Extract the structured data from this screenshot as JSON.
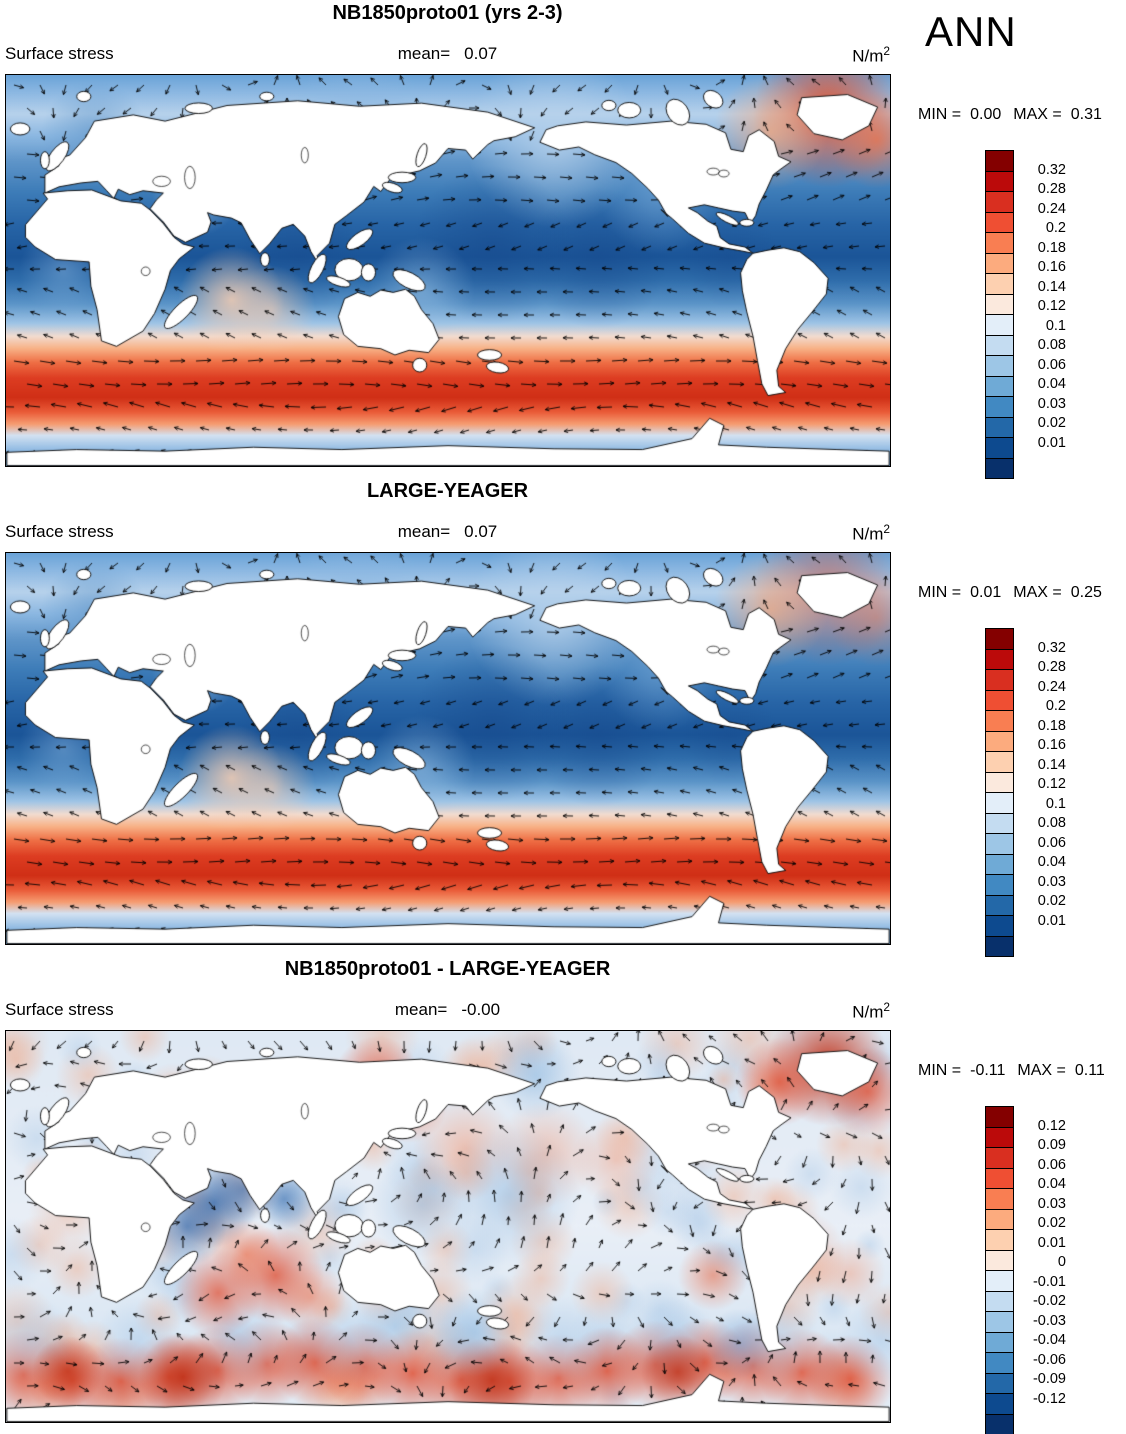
{
  "header": {
    "season": "ANN"
  },
  "colors": {
    "land": "#ffffff",
    "coastline": "#000000",
    "arrow": "#000000",
    "accent_red": "#d02f16",
    "accent_blue": "#1b5598"
  },
  "palette": {
    "colors": [
      "#840000",
      "#bb0a0a",
      "#d92f20",
      "#ef4f33",
      "#f97e52",
      "#fcab7e",
      "#fdd0b0",
      "#fbe9dd",
      "#e3eef9",
      "#c4dcf1",
      "#9dc6e6",
      "#6faad6",
      "#4189c2",
      "#2368a8",
      "#0d4a8f",
      "#08306b"
    ]
  },
  "panels": [
    {
      "title": "NB1850proto01 (yrs 2-3)",
      "field_label": "Surface stress",
      "mean_label": "mean=",
      "mean_value": "0.07",
      "units": "N/m",
      "units_exp": "2",
      "min_label": "MIN =",
      "min_value": "0.00",
      "max_label": "MAX =",
      "max_value": "0.31",
      "colorbar_ticks": [
        "0.32",
        "0.28",
        "0.24",
        "0.2",
        "0.18",
        "0.16",
        "0.14",
        "0.12",
        "0.1",
        "0.08",
        "0.06",
        "0.04",
        "0.03",
        "0.02",
        "0.01"
      ]
    },
    {
      "title": "LARGE-YEAGER",
      "field_label": "Surface stress",
      "mean_label": "mean=",
      "mean_value": "0.07",
      "units": "N/m",
      "units_exp": "2",
      "min_label": "MIN =",
      "min_value": "0.01",
      "max_label": "MAX =",
      "max_value": "0.25",
      "colorbar_ticks": [
        "0.32",
        "0.28",
        "0.24",
        "0.2",
        "0.18",
        "0.16",
        "0.14",
        "0.12",
        "0.1",
        "0.08",
        "0.06",
        "0.04",
        "0.03",
        "0.02",
        "0.01"
      ]
    },
    {
      "title": "NB1850proto01 - LARGE-YEAGER",
      "field_label": "Surface stress",
      "mean_label": "mean=",
      "mean_value": "-0.00",
      "units": "N/m",
      "units_exp": "2",
      "min_label": "MIN =",
      "min_value": "-0.11",
      "max_label": "MAX =",
      "max_value": "0.11",
      "colorbar_ticks": [
        "0.12",
        "0.09",
        "0.06",
        "0.04",
        "0.03",
        "0.02",
        "0.01",
        "0",
        "-0.01",
        "-0.02",
        "-0.03",
        "-0.04",
        "-0.06",
        "-0.09",
        "-0.12"
      ]
    }
  ],
  "chart_data": [
    {
      "type": "heatmap",
      "title": "NB1850proto01 (yrs 2-3)",
      "variable": "Surface stress",
      "units": "N/m^2",
      "season": "ANN",
      "statistic_mean": 0.07,
      "min": 0.0,
      "max": 0.31,
      "colorbar_levels": [
        0.01,
        0.02,
        0.03,
        0.04,
        0.06,
        0.08,
        0.1,
        0.12,
        0.14,
        0.16,
        0.18,
        0.2,
        0.24,
        0.28,
        0.32
      ],
      "overlay": "vector arrows showing surface stress direction",
      "projection": "global latitude-longitude map, land masked white",
      "legend_position": "right",
      "notable_features": [
        "strong red band (0.2-0.3 N/m^2) over Southern Ocean westerlies near 45-60S",
        "red maximum in North Atlantic storm track at map top right",
        "dark blue minima (0.01-0.04) in tropical oceans",
        "pale pink trade-wind band in southern Indian Ocean"
      ]
    },
    {
      "type": "heatmap",
      "title": "LARGE-YEAGER",
      "variable": "Surface stress",
      "units": "N/m^2",
      "season": "ANN",
      "statistic_mean": 0.07,
      "min": 0.01,
      "max": 0.25,
      "colorbar_levels": [
        0.01,
        0.02,
        0.03,
        0.04,
        0.06,
        0.08,
        0.1,
        0.12,
        0.14,
        0.16,
        0.18,
        0.2,
        0.24,
        0.28,
        0.32
      ],
      "overlay": "vector arrows showing surface stress direction",
      "projection": "global latitude-longitude map, land masked white",
      "legend_position": "right",
      "notable_features": [
        "red Southern Ocean band slightly weaker than model panel",
        "moderate blues across tropics and mid-latitudes"
      ]
    },
    {
      "type": "heatmap",
      "title": "NB1850proto01 - LARGE-YEAGER",
      "variable": "Surface stress difference",
      "units": "N/m^2",
      "season": "ANN",
      "statistic_mean": -0.0,
      "min": -0.11,
      "max": 0.11,
      "colorbar_levels": [
        -0.12,
        -0.09,
        -0.06,
        -0.04,
        -0.03,
        -0.02,
        -0.01,
        0,
        0.01,
        0.02,
        0.03,
        0.04,
        0.06,
        0.09,
        0.12
      ],
      "overlay": "difference vector arrows",
      "projection": "global latitude-longitude map, land masked white",
      "legend_position": "right",
      "notable_features": [
        "positive (red) band along 55-65S poleward side of Southern Ocean westerlies",
        "strong positive patch in North Atlantic top right",
        "positive patches NW Pacific and around western Australia",
        "negative (blue) patches in northern Indian Ocean and equatorial Pacific",
        "mottled weak differences elsewhere"
      ]
    }
  ]
}
